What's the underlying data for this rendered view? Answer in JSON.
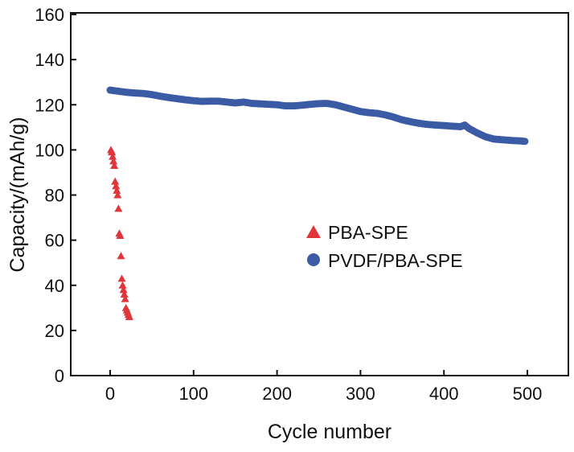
{
  "chart_data": {
    "type": "scatter",
    "title": "",
    "xlabel": "Cycle number",
    "ylabel": "Capacity/(mAh/g)",
    "xlim": [
      -20,
      550
    ],
    "ylim": [
      0,
      160
    ],
    "xticks": [
      0,
      100,
      200,
      300,
      400,
      500
    ],
    "yticks": [
      0,
      20,
      40,
      60,
      80,
      100,
      120,
      140,
      160
    ],
    "grid": false,
    "legend_position": "center-right",
    "series": [
      {
        "name": "PBA-SPE",
        "marker": "triangle",
        "color": "#e0363b",
        "x": [
          1,
          2,
          3,
          4,
          5,
          6,
          7,
          8,
          9,
          10,
          11,
          12,
          13,
          14,
          15,
          16,
          17,
          18,
          19,
          20,
          21,
          22,
          23
        ],
        "y": [
          100,
          99,
          97,
          95,
          93,
          86,
          84,
          82,
          80,
          74,
          63,
          62,
          53,
          43,
          40,
          38,
          36,
          34,
          30,
          29,
          28,
          27,
          26
        ]
      },
      {
        "name": "PVDF/PBA-SPE",
        "marker": "circle",
        "color": "#3b5ba5",
        "x": [
          0,
          10,
          20,
          30,
          40,
          50,
          60,
          70,
          80,
          90,
          100,
          110,
          120,
          130,
          140,
          150,
          160,
          170,
          180,
          190,
          200,
          210,
          220,
          230,
          240,
          250,
          260,
          270,
          280,
          290,
          300,
          310,
          320,
          330,
          340,
          350,
          360,
          370,
          380,
          390,
          400,
          410,
          420,
          425,
          430,
          440,
          450,
          460,
          470,
          480,
          490,
          497
        ],
        "y": [
          126.5,
          126,
          125.5,
          125.2,
          125,
          124.5,
          123.8,
          123.2,
          122.7,
          122.2,
          121.8,
          121.5,
          121.6,
          121.6,
          121.2,
          120.8,
          121.2,
          120.6,
          120.4,
          120.2,
          120,
          119.5,
          119.5,
          119.8,
          120.2,
          120.5,
          120.6,
          120,
          119,
          118,
          117,
          116.5,
          116.2,
          115.5,
          114.5,
          113.3,
          112.5,
          111.8,
          111.3,
          111,
          110.8,
          110.5,
          110.3,
          111,
          109.5,
          107.5,
          105.8,
          104.8,
          104.5,
          104.2,
          104,
          103.8
        ]
      }
    ]
  }
}
